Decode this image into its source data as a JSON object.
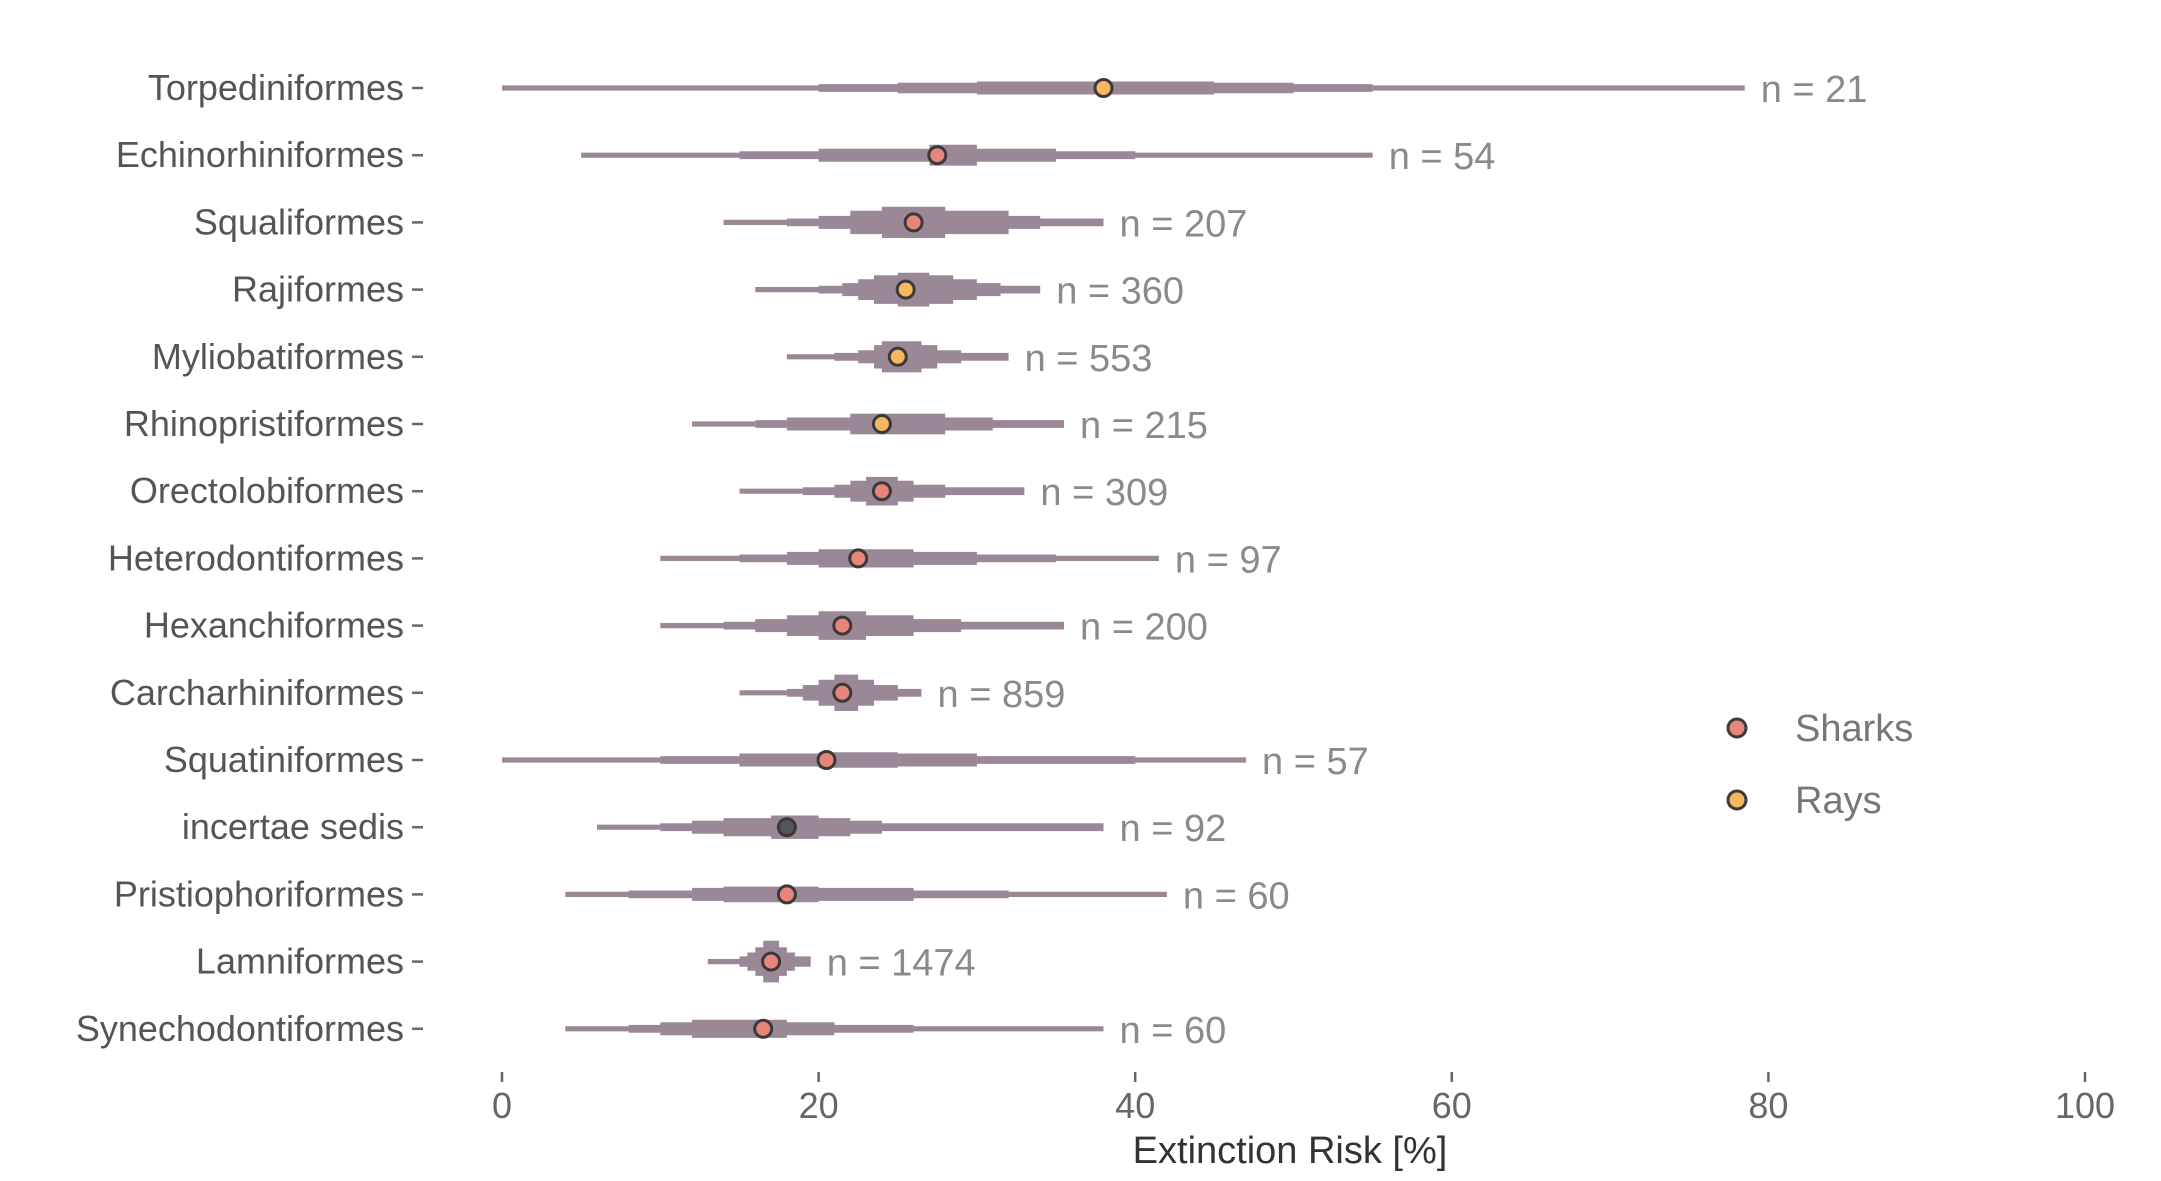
{
  "chart_data": {
    "type": "ridge-step-density",
    "xlabel": "Extinction Risk [%]",
    "xlim": [
      0,
      100
    ],
    "xticks": [
      0,
      20,
      40,
      60,
      80,
      100
    ],
    "grid": false,
    "legend_position": "right",
    "colors": {
      "violin": "#9b8897",
      "Sharks": "#e8857a",
      "Rays": "#f5b85e",
      "incertae": "#555555",
      "outline": "#3a3a3a"
    },
    "legend": [
      {
        "name": "Sharks",
        "color": "#e8857a"
      },
      {
        "name": "Rays",
        "color": "#f5b85e"
      }
    ],
    "categories": [
      {
        "name": "Torpediniformes",
        "n": "n = 21",
        "group": "Rays",
        "median": 38,
        "min": 0,
        "max": 78.5,
        "profile": [
          [
            0,
            0.4
          ],
          [
            20,
            0.6
          ],
          [
            25,
            0.8
          ],
          [
            30,
            1.0
          ],
          [
            45,
            0.8
          ],
          [
            50,
            0.6
          ],
          [
            55,
            0.4
          ]
        ]
      },
      {
        "name": "Echinorhiniformes",
        "n": "n = 54",
        "group": "Sharks",
        "median": 27.5,
        "min": 5,
        "max": 55,
        "profile": [
          [
            5,
            0.4
          ],
          [
            15,
            0.6
          ],
          [
            20,
            1.0
          ],
          [
            27,
            1.6
          ],
          [
            30,
            1.0
          ],
          [
            35,
            0.6
          ],
          [
            40,
            0.4
          ]
        ]
      },
      {
        "name": "Squaliformes",
        "n": "n = 207",
        "group": "Sharks",
        "median": 26,
        "min": 14,
        "max": 38,
        "profile": [
          [
            14,
            0.4
          ],
          [
            18,
            0.6
          ],
          [
            20,
            1.0
          ],
          [
            22,
            1.8
          ],
          [
            24,
            2.4
          ],
          [
            28,
            1.8
          ],
          [
            32,
            1.0
          ],
          [
            34,
            0.6
          ],
          [
            38,
            0.4
          ]
        ]
      },
      {
        "name": "Rajiformes",
        "n": "n = 360",
        "group": "Rays",
        "median": 25.5,
        "min": 16,
        "max": 34,
        "profile": [
          [
            16,
            0.4
          ],
          [
            20,
            0.6
          ],
          [
            21.5,
            1.0
          ],
          [
            22.5,
            1.6
          ],
          [
            23.5,
            2.2
          ],
          [
            25,
            2.6
          ],
          [
            27,
            2.2
          ],
          [
            28.5,
            1.6
          ],
          [
            30,
            1.0
          ],
          [
            31.5,
            0.6
          ],
          [
            34,
            0.4
          ]
        ]
      },
      {
        "name": "Myliobatiformes",
        "n": "n = 553",
        "group": "Rays",
        "median": 25,
        "min": 18,
        "max": 32,
        "profile": [
          [
            18,
            0.4
          ],
          [
            21,
            0.6
          ],
          [
            22.5,
            1.0
          ],
          [
            23.5,
            1.8
          ],
          [
            24,
            2.4
          ],
          [
            26.5,
            1.8
          ],
          [
            27.5,
            1.0
          ],
          [
            29,
            0.6
          ],
          [
            32,
            0.4
          ]
        ]
      },
      {
        "name": "Rhinopristiformes",
        "n": "n = 215",
        "group": "Rays",
        "median": 24,
        "min": 12,
        "max": 35.5,
        "profile": [
          [
            12,
            0.4
          ],
          [
            16,
            0.6
          ],
          [
            18,
            1.0
          ],
          [
            22,
            1.6
          ],
          [
            28,
            1.0
          ],
          [
            31,
            0.6
          ],
          [
            35.5,
            0.4
          ]
        ]
      },
      {
        "name": "Orectolobiformes",
        "n": "n = 309",
        "group": "Sharks",
        "median": 24,
        "min": 15,
        "max": 33,
        "profile": [
          [
            15,
            0.4
          ],
          [
            19,
            0.6
          ],
          [
            21,
            1.0
          ],
          [
            22,
            1.6
          ],
          [
            23,
            2.2
          ],
          [
            25,
            1.6
          ],
          [
            26,
            1.0
          ],
          [
            28,
            0.6
          ],
          [
            33,
            0.4
          ]
        ]
      },
      {
        "name": "Heterodontiformes",
        "n": "n = 97",
        "group": "Sharks",
        "median": 22.5,
        "min": 10,
        "max": 41.5,
        "profile": [
          [
            10,
            0.4
          ],
          [
            15,
            0.6
          ],
          [
            18,
            1.0
          ],
          [
            20,
            1.4
          ],
          [
            26,
            1.0
          ],
          [
            30,
            0.6
          ],
          [
            35,
            0.4
          ]
        ]
      },
      {
        "name": "Hexanchiformes",
        "n": "n = 200",
        "group": "Sharks",
        "median": 21.5,
        "min": 10,
        "max": 35.5,
        "profile": [
          [
            10,
            0.4
          ],
          [
            14,
            0.6
          ],
          [
            16,
            1.0
          ],
          [
            18,
            1.6
          ],
          [
            20,
            2.2
          ],
          [
            23,
            1.6
          ],
          [
            26,
            1.0
          ],
          [
            29,
            0.6
          ],
          [
            35.5,
            0.4
          ]
        ]
      },
      {
        "name": "Carcharhiniformes",
        "n": "n = 859",
        "group": "Sharks",
        "median": 21.5,
        "min": 15,
        "max": 26.5,
        "profile": [
          [
            15,
            0.4
          ],
          [
            18,
            0.6
          ],
          [
            19,
            1.2
          ],
          [
            20,
            2.0
          ],
          [
            21,
            2.8
          ],
          [
            22.5,
            2.0
          ],
          [
            23.5,
            1.2
          ],
          [
            25,
            0.6
          ],
          [
            26.5,
            0.4
          ]
        ]
      },
      {
        "name": "Squatiniformes",
        "n": "n = 57",
        "group": "Sharks",
        "median": 20.5,
        "min": 0,
        "max": 47,
        "profile": [
          [
            0,
            0.4
          ],
          [
            10,
            0.6
          ],
          [
            15,
            1.0
          ],
          [
            20,
            1.2
          ],
          [
            25,
            1.0
          ],
          [
            30,
            0.6
          ],
          [
            40,
            0.4
          ]
        ]
      },
      {
        "name": "incertae sedis",
        "n": "n = 92",
        "group": "incertae",
        "median": 18,
        "min": 6,
        "max": 38,
        "profile": [
          [
            6,
            0.4
          ],
          [
            10,
            0.6
          ],
          [
            12,
            1.0
          ],
          [
            14,
            1.4
          ],
          [
            17,
            1.8
          ],
          [
            20,
            1.4
          ],
          [
            22,
            1.0
          ],
          [
            24,
            0.6
          ],
          [
            38,
            0.4
          ]
        ]
      },
      {
        "name": "Pristiophoriformes",
        "n": "n = 60",
        "group": "Sharks",
        "median": 18,
        "min": 4,
        "max": 42,
        "profile": [
          [
            4,
            0.4
          ],
          [
            8,
            0.6
          ],
          [
            12,
            1.0
          ],
          [
            14,
            1.2
          ],
          [
            20,
            1.0
          ],
          [
            26,
            0.6
          ],
          [
            32,
            0.4
          ]
        ]
      },
      {
        "name": "Lamniformes",
        "n": "n = 1474",
        "group": "Sharks",
        "median": 17,
        "min": 13,
        "max": 19.5,
        "profile": [
          [
            13,
            0.4
          ],
          [
            15,
            0.8
          ],
          [
            15.5,
            1.4
          ],
          [
            16,
            2.2
          ],
          [
            16.5,
            3.2
          ],
          [
            17.5,
            2.2
          ],
          [
            18,
            1.4
          ],
          [
            18.5,
            0.8
          ],
          [
            19.5,
            0.4
          ]
        ]
      },
      {
        "name": "Synechodontiformes",
        "n": "n = 60",
        "group": "Sharks",
        "median": 16.5,
        "min": 4,
        "max": 38,
        "profile": [
          [
            4,
            0.4
          ],
          [
            8,
            0.6
          ],
          [
            10,
            1.0
          ],
          [
            12,
            1.4
          ],
          [
            18,
            1.0
          ],
          [
            21,
            0.6
          ],
          [
            26,
            0.4
          ]
        ]
      }
    ]
  }
}
